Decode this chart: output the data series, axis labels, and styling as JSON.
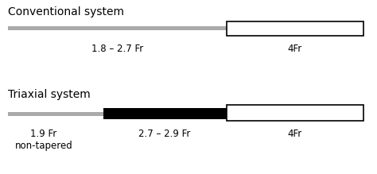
{
  "title_conventional": "Conventional system",
  "title_triaxial": "Triaxial system",
  "label_conv_thin": "1.8 – 2.7 Fr",
  "label_conv_thick": "4Fr",
  "label_tri_thin": "1.9 Fr\nnon-tapered",
  "label_tri_mid": "2.7 – 2.9 Fr",
  "label_tri_thick": "4Fr",
  "background_color": "#ffffff",
  "gray_color": "#aaaaaa",
  "black_color": "#000000",
  "white_color": "#ffffff",
  "font_title": 10,
  "font_label": 8.5
}
